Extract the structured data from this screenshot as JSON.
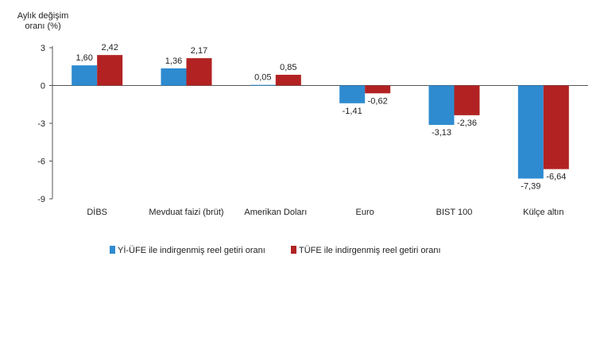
{
  "chart_data": {
    "type": "bar",
    "ylabel_lines": [
      "Aylık değişim",
      "oranı (%)"
    ],
    "ylim": [
      -9,
      3
    ],
    "yticks": [
      3,
      0,
      -3,
      -6,
      -9
    ],
    "ytick_labels": [
      "3",
      "0",
      "-3",
      "-6",
      "-9"
    ],
    "categories": [
      "DİBS",
      "Mevduat faizi (brüt)",
      "Amerikan Doları",
      "Euro",
      "BIST 100",
      "Külçe altın"
    ],
    "series": [
      {
        "name": "Yİ-ÜFE ile indirgenmiş reel getiri oranı",
        "color": "#2E8BD0",
        "values": [
          1.6,
          1.36,
          0.05,
          -1.41,
          -3.13,
          -7.39
        ],
        "labels": [
          "1,60",
          "1,36",
          "0,05",
          "-1,41",
          "-3,13",
          "-7,39"
        ]
      },
      {
        "name": "TÜFE ile indirgenmiş reel getiri oranı",
        "color": "#B22222",
        "values": [
          2.42,
          2.17,
          0.85,
          -0.62,
          -2.36,
          -6.64
        ],
        "labels": [
          "2,42",
          "2,17",
          "0,85",
          "-0,62",
          "-2,36",
          "-6,64"
        ]
      }
    ],
    "grid": false,
    "legend_position": "bottom"
  }
}
